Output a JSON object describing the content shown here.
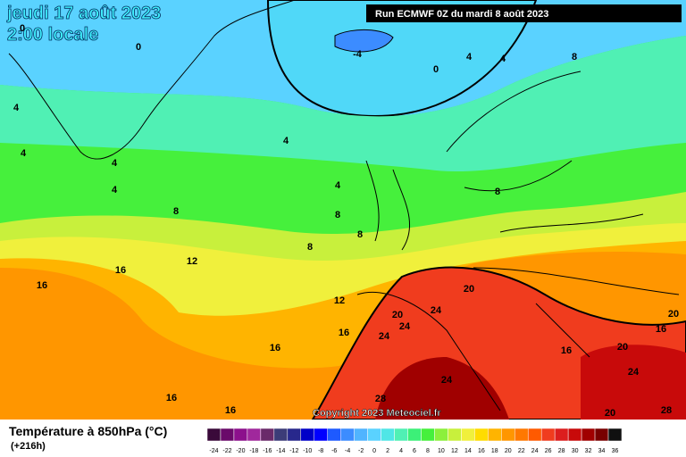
{
  "header": {
    "date": "jeudi 17 août 2023",
    "time": "2:00 locale",
    "run": "Run ECMWF 0Z du mardi 8 août 2023"
  },
  "footer": {
    "copyright": "Copyright 2023 Meteociel.fr",
    "title": "Température à 850hPa (°C)",
    "lead": "(+216h)"
  },
  "legend": {
    "labels": [
      -24,
      -22,
      -20,
      -18,
      -16,
      -14,
      -12,
      -10,
      -8,
      -6,
      -4,
      -2,
      0,
      2,
      4,
      6,
      8,
      10,
      12,
      14,
      16,
      18,
      20,
      22,
      24,
      26,
      28,
      30,
      32,
      34,
      36
    ],
    "colors": [
      "#3a0a3a",
      "#6a0a6a",
      "#8c108c",
      "#a0289c",
      "#6a2a6a",
      "#3c3c78",
      "#28288c",
      "#0000c8",
      "#0000ff",
      "#1e5aff",
      "#3c8cff",
      "#50b4ff",
      "#5ad2ff",
      "#50e6e6",
      "#50f0b4",
      "#3cf078",
      "#46f03c",
      "#8cf03c",
      "#c8f03c",
      "#f0f03c",
      "#ffdc00",
      "#ffb400",
      "#ff9600",
      "#ff7800",
      "#ff5a00",
      "#f03c1e",
      "#dc1e1e",
      "#c80a0a",
      "#a00000",
      "#780000",
      "#101010"
    ]
  },
  "contour_labels": [
    "0",
    "0",
    "-4",
    "0",
    "4",
    "4",
    "8",
    "4",
    "4",
    "4",
    "4",
    "4",
    "4",
    "8",
    "8",
    "8",
    "8",
    "8",
    "12",
    "16",
    "16",
    "12",
    "20",
    "20",
    "24",
    "24",
    "24",
    "16",
    "16",
    "16",
    "16",
    "20",
    "16",
    "16",
    "20",
    "24",
    "24",
    "28",
    "20",
    "28"
  ]
}
